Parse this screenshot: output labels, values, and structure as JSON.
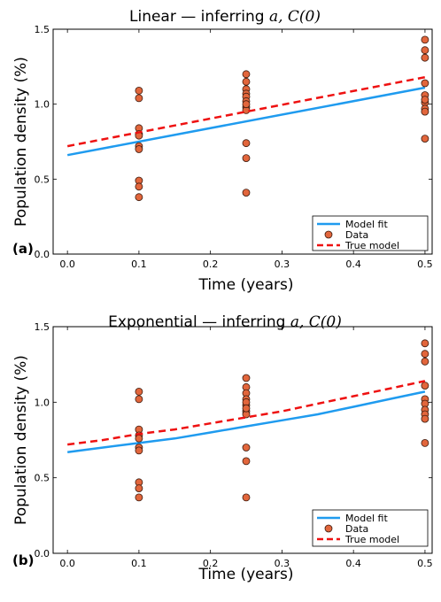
{
  "colors": {
    "model_fit": "#1f9bef",
    "data_fill": "#e2663c",
    "data_edge": "#3a1a0e",
    "true_model": "#ee1111"
  },
  "chart_data": [
    {
      "type": "scatter",
      "title_prefix": "Linear — inferring ",
      "title_math": "a, C(0)",
      "panel_label": "(a)",
      "xlabel": "Time (years)",
      "ylabel": "Population density (%)",
      "xlim": [
        -0.02,
        0.51
      ],
      "ylim": [
        0.0,
        1.5
      ],
      "xticks": [
        "0.0",
        "0.1",
        "0.2",
        "0.3",
        "0.4",
        "0.5"
      ],
      "yticks": [
        "0.0",
        "0.5",
        "1.0",
        "1.5"
      ],
      "xtick_values": [
        0.0,
        0.1,
        0.2,
        0.3,
        0.4,
        0.5
      ],
      "ytick_values": [
        0.0,
        0.5,
        1.0,
        1.5
      ],
      "grid": false,
      "legend_position": "lower-right",
      "series": [
        {
          "name": "Model fit",
          "kind": "line",
          "style": "solid",
          "x": [
            0.0,
            0.5
          ],
          "y": [
            0.66,
            1.11
          ]
        },
        {
          "name": "Data",
          "kind": "scatter",
          "x": [
            0.1,
            0.1,
            0.1,
            0.1,
            0.1,
            0.1,
            0.1,
            0.1,
            0.1,
            0.1,
            0.25,
            0.25,
            0.25,
            0.25,
            0.25,
            0.25,
            0.25,
            0.25,
            0.25,
            0.25,
            0.25,
            0.25,
            0.5,
            0.5,
            0.5,
            0.5,
            0.5,
            0.5,
            0.5,
            0.5,
            0.5,
            0.5
          ],
          "y": [
            1.09,
            1.04,
            0.84,
            0.8,
            0.72,
            0.7,
            0.49,
            0.45,
            0.38,
            0.79,
            1.2,
            1.15,
            1.1,
            1.07,
            1.05,
            1.02,
            0.98,
            0.96,
            0.74,
            0.64,
            0.41,
            1.0,
            1.43,
            1.36,
            1.31,
            1.14,
            1.06,
            1.01,
            0.97,
            0.95,
            0.77,
            1.03
          ]
        },
        {
          "name": "True model",
          "kind": "line",
          "style": "dashed",
          "x": [
            0.0,
            0.5
          ],
          "y": [
            0.72,
            1.18
          ]
        }
      ]
    },
    {
      "type": "scatter",
      "title_prefix": "Exponential — inferring ",
      "title_math": "a, C(0)",
      "panel_label": "(b)",
      "xlabel": "Time (years)",
      "ylabel": "Population density (%)",
      "xlim": [
        -0.02,
        0.51
      ],
      "ylim": [
        0.0,
        1.5
      ],
      "xticks": [
        "0.0",
        "0.1",
        "0.2",
        "0.3",
        "0.4",
        "0.5"
      ],
      "yticks": [
        "0.0",
        "0.5",
        "1.0",
        "1.5"
      ],
      "xtick_values": [
        0.0,
        0.1,
        0.2,
        0.3,
        0.4,
        0.5
      ],
      "ytick_values": [
        0.0,
        0.5,
        1.0,
        1.5
      ],
      "grid": false,
      "legend_position": "lower-right",
      "series": [
        {
          "name": "Model fit",
          "kind": "line",
          "style": "solid",
          "x": [
            0.0,
            0.05,
            0.1,
            0.15,
            0.2,
            0.25,
            0.3,
            0.35,
            0.4,
            0.45,
            0.5
          ],
          "y": [
            0.67,
            0.7,
            0.73,
            0.76,
            0.8,
            0.84,
            0.88,
            0.92,
            0.97,
            1.02,
            1.07
          ]
        },
        {
          "name": "Data",
          "kind": "scatter",
          "x": [
            0.1,
            0.1,
            0.1,
            0.1,
            0.1,
            0.1,
            0.1,
            0.1,
            0.1,
            0.1,
            0.25,
            0.25,
            0.25,
            0.25,
            0.25,
            0.25,
            0.25,
            0.25,
            0.25,
            0.25,
            0.25,
            0.25,
            0.5,
            0.5,
            0.5,
            0.5,
            0.5,
            0.5,
            0.5,
            0.5,
            0.5,
            0.5
          ],
          "y": [
            1.07,
            1.02,
            0.82,
            0.78,
            0.76,
            0.7,
            0.68,
            0.47,
            0.43,
            0.37,
            1.16,
            1.1,
            1.06,
            1.02,
            0.98,
            0.94,
            0.92,
            0.7,
            0.61,
            0.37,
            1.0,
            0.96,
            1.39,
            1.32,
            1.27,
            1.11,
            1.02,
            0.99,
            0.95,
            0.92,
            0.89,
            0.73
          ]
        },
        {
          "name": "True model",
          "kind": "line",
          "style": "dashed",
          "x": [
            0.0,
            0.05,
            0.1,
            0.15,
            0.2,
            0.25,
            0.3,
            0.35,
            0.4,
            0.45,
            0.5
          ],
          "y": [
            0.72,
            0.75,
            0.79,
            0.82,
            0.86,
            0.9,
            0.94,
            0.99,
            1.04,
            1.09,
            1.14
          ]
        }
      ]
    }
  ]
}
